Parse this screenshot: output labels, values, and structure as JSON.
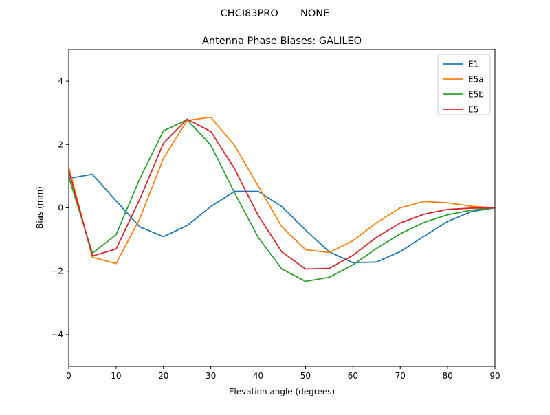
{
  "chart_data": {
    "type": "line",
    "suptitle": "CHCI83PRO       NONE",
    "title": "Antenna Phase Biases: GALILEO",
    "xlabel": "Elevation angle (degrees)",
    "ylabel": "Bias (mm)",
    "xlim": [
      0,
      90
    ],
    "ylim": [
      -5,
      5
    ],
    "xticks": [
      0,
      10,
      20,
      30,
      40,
      50,
      60,
      70,
      80,
      90
    ],
    "yticks": [
      -4,
      -2,
      0,
      2,
      4
    ],
    "ytick_labels": [
      "−4",
      "−2",
      "0",
      "2",
      "4"
    ],
    "grid": false,
    "legend_position": "top-right",
    "x": [
      0,
      5,
      10,
      15,
      20,
      25,
      30,
      35,
      40,
      45,
      50,
      55,
      60,
      65,
      70,
      75,
      80,
      85,
      90
    ],
    "series": [
      {
        "name": "E1",
        "color": "#1f77b4",
        "values": [
          0.93,
          1.06,
          0.22,
          -0.6,
          -0.91,
          -0.56,
          0.04,
          0.52,
          0.52,
          0.04,
          -0.7,
          -1.39,
          -1.73,
          -1.71,
          -1.38,
          -0.9,
          -0.43,
          -0.12,
          0
        ]
      },
      {
        "name": "E5a",
        "color": "#ff7f0e",
        "values": [
          1.3,
          -1.56,
          -1.76,
          -0.34,
          1.56,
          2.76,
          2.86,
          1.97,
          0.69,
          -0.6,
          -1.32,
          -1.41,
          -1.04,
          -0.47,
          0,
          0.2,
          0.16,
          0.05,
          0
        ]
      },
      {
        "name": "E5b",
        "color": "#2ca02c",
        "values": [
          0.98,
          -1.43,
          -0.85,
          0.92,
          2.43,
          2.78,
          1.98,
          0.48,
          -0.93,
          -1.93,
          -2.32,
          -2.19,
          -1.8,
          -1.28,
          -0.82,
          -0.46,
          -0.22,
          -0.07,
          0
        ]
      },
      {
        "name": "E5",
        "color": "#d62728",
        "values": [
          1.17,
          -1.52,
          -1.3,
          0.27,
          2.04,
          2.8,
          2.41,
          1.24,
          -0.24,
          -1.39,
          -1.93,
          -1.91,
          -1.5,
          -0.93,
          -0.48,
          -0.2,
          -0.05,
          -0.01,
          0
        ]
      }
    ]
  }
}
